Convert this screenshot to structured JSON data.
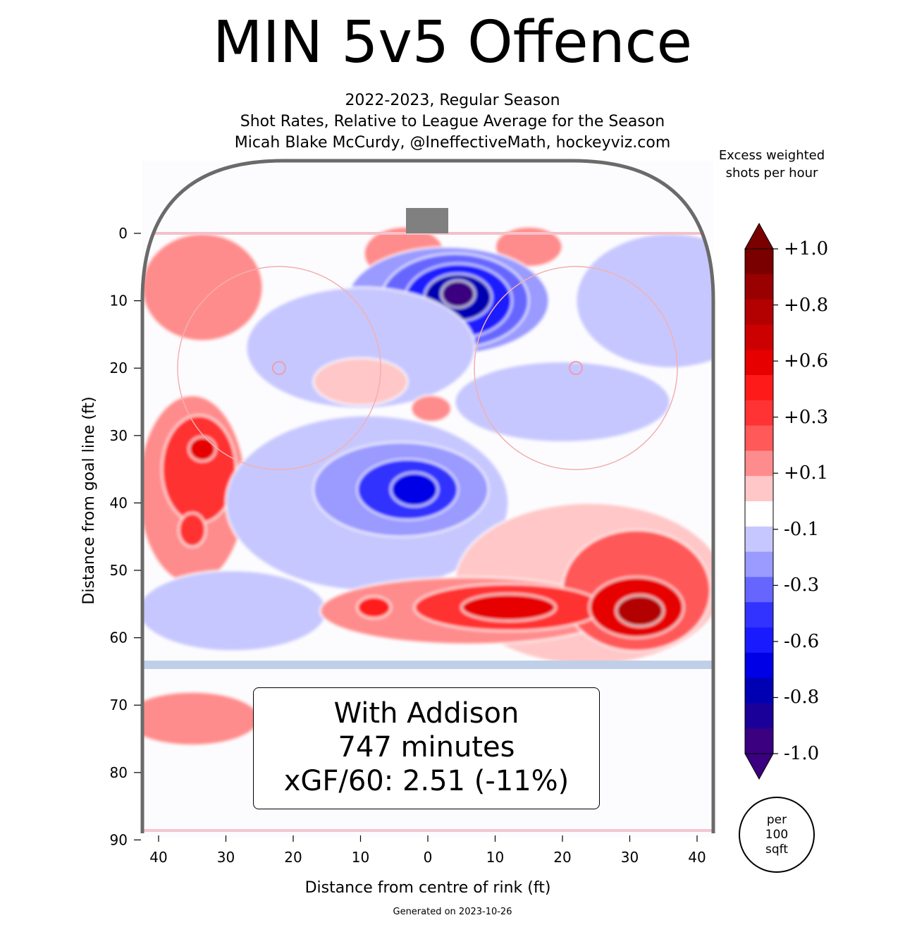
{
  "header": {
    "title": "MIN 5v5 Offence",
    "subtitle_lines": [
      "2022-2023, Regular Season",
      "Shot Rates, Relative to League Average for the Season",
      "Micah Blake McCurdy, @IneffectiveMath, hockeyviz.com"
    ]
  },
  "chart_data": {
    "type": "heatmap",
    "title": "MIN 5v5 Offence",
    "xlabel": "Distance from centre of rink (ft)",
    "ylabel": "Distance from goal line (ft)",
    "x_ticks": [
      "40",
      "30",
      "20",
      "10",
      "0",
      "10",
      "20",
      "30",
      "40"
    ],
    "x_tick_values": [
      -40,
      -30,
      -20,
      -10,
      0,
      10,
      20,
      30,
      40
    ],
    "y_ticks": [
      "0",
      "10",
      "20",
      "30",
      "40",
      "50",
      "60",
      "70",
      "80",
      "90"
    ],
    "y_tick_values": [
      0,
      10,
      20,
      30,
      40,
      50,
      60,
      70,
      80,
      90
    ],
    "xlim": [
      -42.5,
      42.5
    ],
    "ylim": [
      -11,
      89
    ],
    "colorbar": {
      "title": "Excess weighted shots per hour",
      "tick_labels": [
        "+1.0",
        "+0.8",
        "+0.6",
        "+0.3",
        "+0.1",
        "-0.1",
        "-0.3",
        "-0.6",
        "-0.8",
        "-1.0"
      ],
      "unit_label": [
        "per",
        "100",
        "sqft"
      ],
      "colors_top_to_bottom": [
        "#7a0000",
        "#990000",
        "#b30000",
        "#cc0000",
        "#e60000",
        "#ff1a1a",
        "#ff3333",
        "#ff5959",
        "#ff8c8c",
        "#ffc7c7",
        "#ffffff",
        "#c7c7ff",
        "#9a9aff",
        "#6666ff",
        "#3333ff",
        "#1a1aff",
        "#0000e6",
        "#0000b3",
        "#1a0099",
        "#3a0080"
      ]
    },
    "blobs": [
      {
        "x": -33.5,
        "y": 8,
        "rx": 9,
        "ry": 8,
        "value": 0.2
      },
      {
        "x": -3.5,
        "y": 3,
        "rx": 6,
        "ry": 4,
        "value": 0.2
      },
      {
        "x": 15,
        "y": 2,
        "rx": 5,
        "ry": 3,
        "value": 0.15
      },
      {
        "x": 36,
        "y": 10,
        "rx": 14,
        "ry": 10,
        "value": -0.1
      },
      {
        "x": 3,
        "y": 10,
        "rx": 15,
        "ry": 8,
        "value": -0.2
      },
      {
        "x": 4,
        "y": 10,
        "rx": 11,
        "ry": 7,
        "value": -0.3
      },
      {
        "x": 4.5,
        "y": 10,
        "rx": 8,
        "ry": 5.5,
        "value": -0.5
      },
      {
        "x": 4.5,
        "y": 9.5,
        "rx": 5,
        "ry": 3.5,
        "value": -0.7
      },
      {
        "x": 4.5,
        "y": 9,
        "rx": 2.5,
        "ry": 2,
        "value": -0.9
      },
      {
        "x": -10,
        "y": 17,
        "rx": 17,
        "ry": 9,
        "value": -0.15
      },
      {
        "x": -10,
        "y": 22,
        "rx": 7,
        "ry": 3.5,
        "value": 0.05
      },
      {
        "x": 0.5,
        "y": 26,
        "rx": 3,
        "ry": 2,
        "value": 0.15
      },
      {
        "x": 20,
        "y": 25,
        "rx": 16,
        "ry": 6,
        "value": -0.15
      },
      {
        "x": -35,
        "y": 38,
        "rx": 8,
        "ry": 14,
        "value": 0.2
      },
      {
        "x": -34,
        "y": 35,
        "rx": 5.5,
        "ry": 8,
        "value": 0.35
      },
      {
        "x": -33.5,
        "y": 32,
        "rx": 2,
        "ry": 1.8,
        "value": 0.6
      },
      {
        "x": -35,
        "y": 44,
        "rx": 2,
        "ry": 2.5,
        "value": 0.4
      },
      {
        "x": -9,
        "y": 40,
        "rx": 21,
        "ry": 13,
        "value": -0.1
      },
      {
        "x": -4,
        "y": 38,
        "rx": 13,
        "ry": 7,
        "value": -0.25
      },
      {
        "x": -3,
        "y": 38,
        "rx": 7.5,
        "ry": 4.5,
        "value": -0.4
      },
      {
        "x": -2,
        "y": 38,
        "rx": 3.5,
        "ry": 2.5,
        "value": -0.6
      },
      {
        "x": -29,
        "y": 56,
        "rx": 14,
        "ry": 6,
        "value": -0.1
      },
      {
        "x": 24,
        "y": 52,
        "rx": 20,
        "ry": 12,
        "value": 0.1
      },
      {
        "x": 6,
        "y": 56,
        "rx": 22,
        "ry": 5,
        "value": 0.2
      },
      {
        "x": 31,
        "y": 53,
        "rx": 11,
        "ry": 9,
        "value": 0.3
      },
      {
        "x": 12,
        "y": 55.5,
        "rx": 14,
        "ry": 3.5,
        "value": 0.4
      },
      {
        "x": 31,
        "y": 55.5,
        "rx": 7,
        "ry": 4.5,
        "value": 0.55
      },
      {
        "x": 12,
        "y": 55.5,
        "rx": 7,
        "ry": 2,
        "value": 0.55
      },
      {
        "x": -8,
        "y": 55.5,
        "rx": 2.5,
        "ry": 1.6,
        "value": 0.5
      },
      {
        "x": 31.5,
        "y": 56,
        "rx": 3.5,
        "ry": 2.3,
        "value": 0.75
      },
      {
        "x": -35,
        "y": 72,
        "rx": 10,
        "ry": 4,
        "value": 0.15
      }
    ]
  },
  "annotation": {
    "lines": [
      "With Addison",
      "747 minutes",
      "xGF/60: 2.51 (-11%)"
    ]
  },
  "footer": {
    "generated": "Generated on 2023-10-26"
  }
}
